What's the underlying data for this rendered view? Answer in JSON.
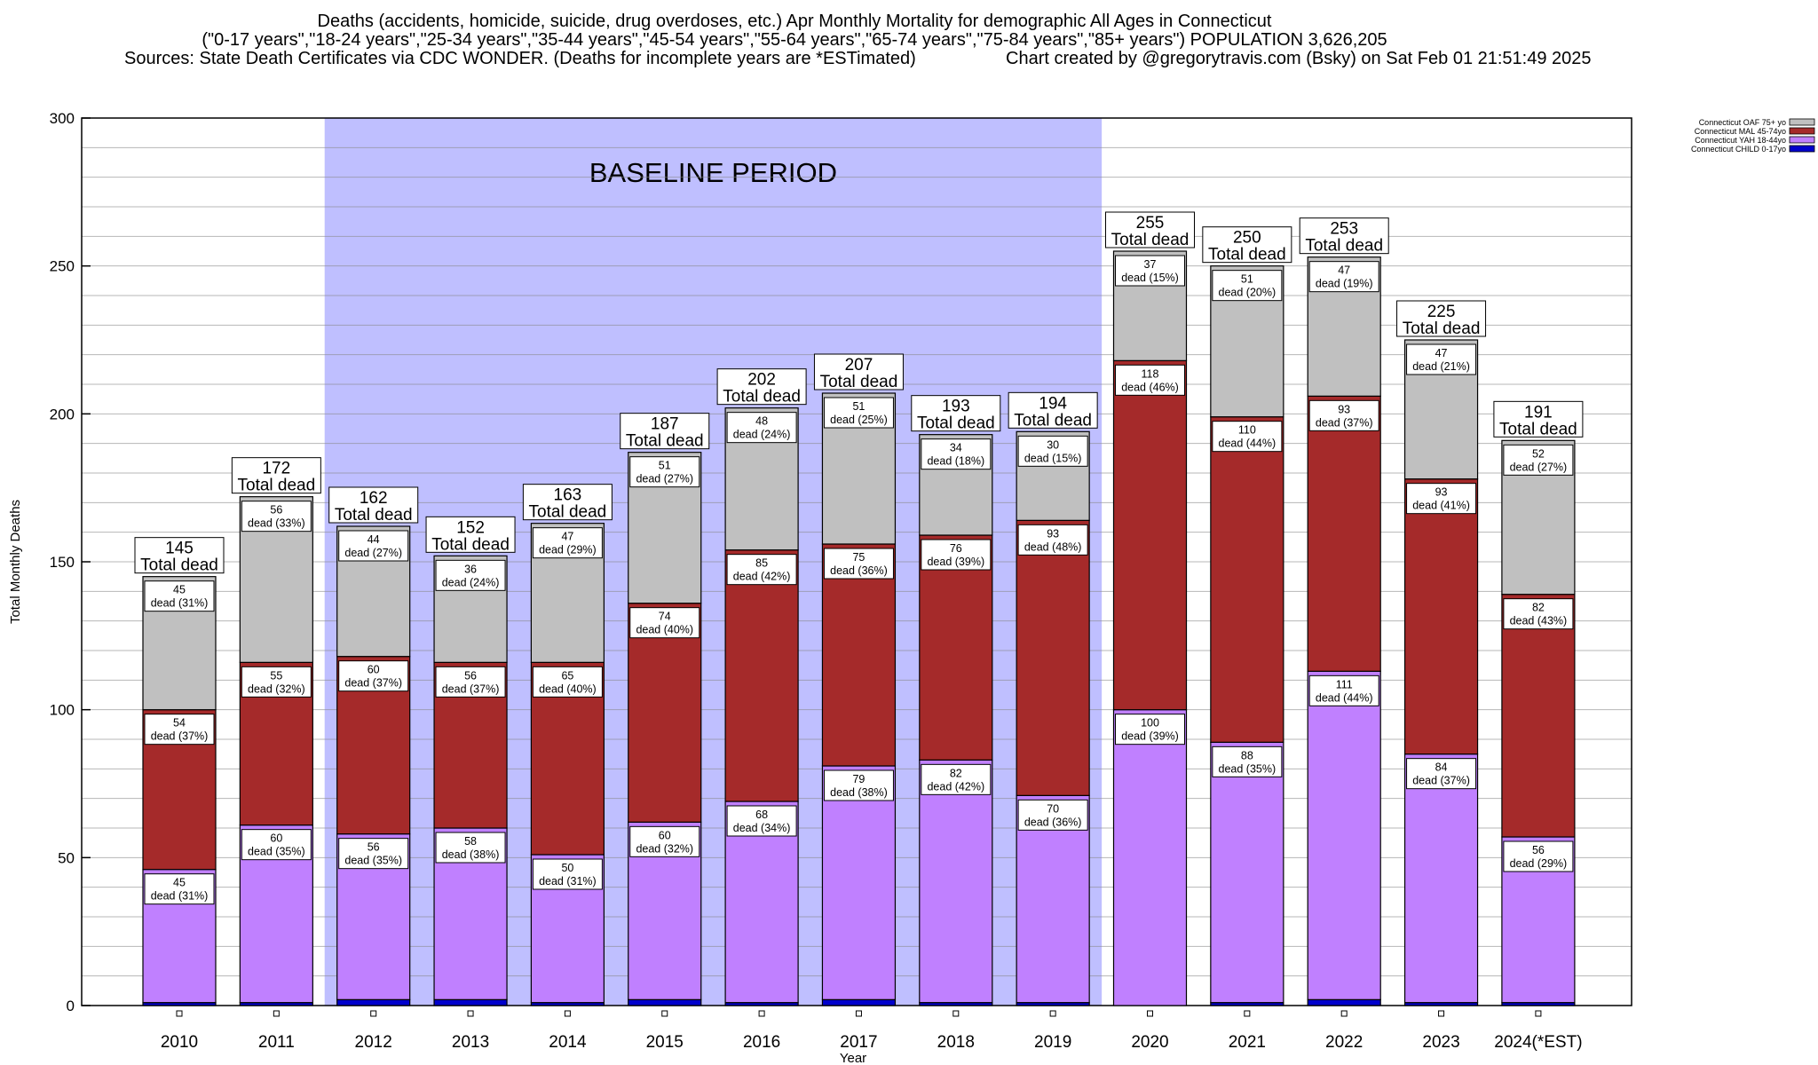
{
  "chart_data": {
    "type": "bar",
    "stacked": true,
    "title": "Deaths (accidents, homicide, suicide, drug overdoses, etc.) Apr Monthly Mortality for demographic All Ages in Connecticut",
    "subtitle": "(\"0-17 years\",\"18-24 years\",\"25-34 years\",\"35-44 years\",\"45-54 years\",\"55-64 years\",\"65-74 years\",\"75-84 years\",\"85+ years\") POPULATION 3,626,205",
    "source": "Sources: State Death Certificates via CDC WONDER. (Deaths for incomplete years are *ESTimated)",
    "credit": "Chart created by @gregorytravis.com (Bsky) on Sat Feb 01 21:51:49 2025",
    "xlabel": "Year",
    "ylabel": "Total Monthly Deaths",
    "ylim": [
      0,
      300
    ],
    "yticks": [
      0,
      50,
      100,
      150,
      200,
      250,
      300
    ],
    "grid": true,
    "legend_position": "top-right",
    "annotation": "BASELINE PERIOD",
    "baseline_range": [
      "2012",
      "2019"
    ],
    "categories": [
      "2010",
      "2011",
      "2012",
      "2013",
      "2014",
      "2015",
      "2016",
      "2017",
      "2018",
      "2019",
      "2020",
      "2021",
      "2022",
      "2023",
      "2024(*EST)"
    ],
    "series": [
      {
        "name": "Connecticut CHILD 0-17yo",
        "color": "#0000cc",
        "values": [
          1,
          1,
          2,
          2,
          1,
          2,
          1,
          2,
          1,
          1,
          0,
          1,
          2,
          1,
          1
        ]
      },
      {
        "name": "Connecticut YAH 18-44yo",
        "color": "#c080ff",
        "values": [
          45,
          60,
          56,
          58,
          50,
          60,
          68,
          79,
          82,
          70,
          100,
          88,
          111,
          84,
          56
        ]
      },
      {
        "name": "Connecticut MAL 45-74yo",
        "color": "#a52a2a",
        "values": [
          54,
          55,
          60,
          56,
          65,
          74,
          85,
          75,
          76,
          93,
          118,
          110,
          93,
          93,
          82
        ]
      },
      {
        "name": "Connecticut OAF 75+ yo",
        "color": "#c0c0c0",
        "values": [
          45,
          56,
          44,
          36,
          47,
          51,
          48,
          51,
          34,
          30,
          37,
          51,
          47,
          47,
          52
        ]
      }
    ],
    "segment_labels": {
      "YAH": [
        "45\ndead (31%)",
        "60\ndead (35%)",
        "56\ndead (35%)",
        "58\ndead (38%)",
        "50\ndead (31%)",
        "60\ndead (32%)",
        "68\ndead (34%)",
        "79\ndead (38%)",
        "82\ndead (42%)",
        "70\ndead (36%)",
        "100\ndead (39%)",
        "88\ndead (35%)",
        "111\ndead (44%)",
        "84\ndead (37%)",
        "56\ndead (29%)"
      ],
      "MAL": [
        "54\ndead (37%)",
        "55\ndead (32%)",
        "60\ndead (37%)",
        "56\ndead (37%)",
        "65\ndead (40%)",
        "74\ndead (40%)",
        "85\ndead (42%)",
        "75\ndead (36%)",
        "76\ndead (39%)",
        "93\ndead (48%)",
        "118\ndead (46%)",
        "110\ndead (44%)",
        "93\ndead (37%)",
        "93\ndead (41%)",
        "82\ndead (43%)"
      ],
      "OAF": [
        "45\ndead (31%)",
        "56\ndead (33%)",
        "44\ndead (27%)",
        "36\ndead (24%)",
        "47\ndead (29%)",
        "51\ndead (27%)",
        "48\ndead (24%)",
        "51\ndead (25%)",
        "34\ndead (18%)",
        "30\ndead (15%)",
        "37\ndead (15%)",
        "51\ndead (20%)",
        "47\ndead (19%)",
        "47\ndead (21%)",
        "52\ndead (27%)"
      ]
    },
    "totals": [
      145,
      172,
      162,
      152,
      163,
      187,
      202,
      207,
      193,
      194,
      255,
      250,
      253,
      225,
      191
    ],
    "total_suffix": "Total dead"
  }
}
